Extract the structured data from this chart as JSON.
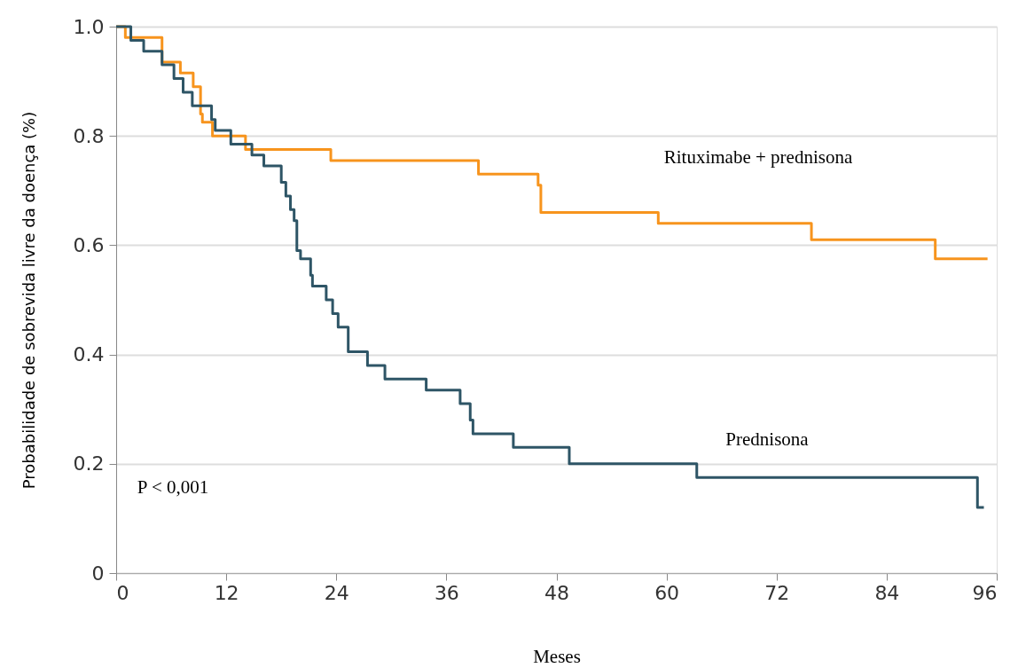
{
  "chart_data": {
    "type": "step",
    "xlabel": "Meses",
    "ylabel": "Probabilidade de sobrevida livre da doença (%)",
    "xlim": [
      0,
      96
    ],
    "xticks": [
      0,
      12,
      24,
      36,
      48,
      60,
      72,
      84,
      96
    ],
    "ylim": [
      0,
      1
    ],
    "yticks": [
      0,
      0.2,
      0.4,
      0.6,
      0.8,
      {
        "value": 1,
        "label": "1.0"
      }
    ],
    "grid": "y",
    "legend": false,
    "line_style": "solid",
    "marker": "none",
    "series": [
      {
        "name": "Rituximabe + prednisona",
        "color": "#f7941d",
        "x": [
          0,
          1,
          5,
          7,
          8.4,
          9.2,
          9.4,
          10.5,
          14.1,
          23.4,
          39.5,
          46,
          46.3,
          59.1,
          75.8,
          89.3,
          95
        ],
        "values": [
          1,
          0.98,
          0.935,
          0.915,
          0.89,
          0.84,
          0.825,
          0.8,
          0.775,
          0.755,
          0.73,
          0.71,
          0.66,
          0.64,
          0.61,
          0.575,
          0.575
        ]
      },
      {
        "name": "Prednisona",
        "color": "#2e5566",
        "x": [
          0,
          1.6,
          3,
          5,
          6.3,
          7.3,
          8.3,
          10.4,
          10.8,
          12.5,
          14.8,
          16.1,
          18,
          18.5,
          19,
          19.4,
          19.7,
          20.1,
          21.2,
          21.4,
          22.9,
          23.6,
          24.2,
          25.3,
          27.4,
          29.3,
          33.8,
          37.5,
          38.6,
          38.9,
          43.3,
          49.4,
          63.3,
          93.9,
          94.6
        ],
        "values": [
          1,
          0.975,
          0.955,
          0.93,
          0.905,
          0.88,
          0.855,
          0.83,
          0.81,
          0.785,
          0.765,
          0.745,
          0.715,
          0.69,
          0.665,
          0.645,
          0.59,
          0.575,
          0.545,
          0.525,
          0.5,
          0.475,
          0.45,
          0.405,
          0.38,
          0.355,
          0.335,
          0.31,
          0.28,
          0.255,
          0.23,
          0.2,
          0.175,
          0.12,
          0.12
        ]
      }
    ],
    "annotations": [
      "P < 0,001"
    ]
  }
}
